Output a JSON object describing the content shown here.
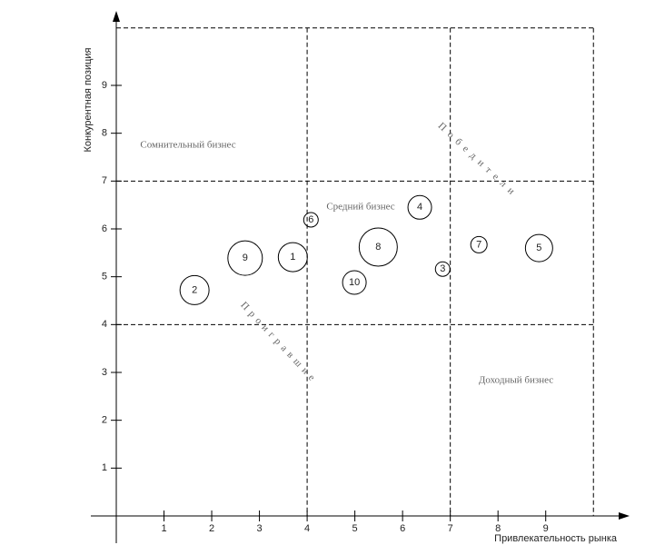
{
  "chart_data": {
    "type": "bubble",
    "x_label": "Привлекательность рынка",
    "y_label": "Конкурентная позиция",
    "xlim": [
      0,
      10.7
    ],
    "ylim": [
      0,
      10.5
    ],
    "xticks": [
      1,
      2,
      3,
      4,
      5,
      6,
      7,
      8,
      9
    ],
    "yticks": [
      1,
      2,
      3,
      4,
      5,
      6,
      7,
      8,
      9
    ],
    "x_dividers": [
      4,
      7,
      10
    ],
    "y_dividers": [
      4,
      7,
      10.2
    ],
    "annotations": [
      "Сомнительный бизнес",
      "Средний бизнес",
      "Доходный бизнес",
      "Победители",
      "Проигравшие"
    ],
    "points": [
      {
        "label": "9",
        "x": 2.7,
        "y": 5.39,
        "size": 19
      },
      {
        "label": "1",
        "x": 3.7,
        "y": 5.41,
        "size": 16
      },
      {
        "label": "2",
        "x": 1.64,
        "y": 4.72,
        "size": 16
      },
      {
        "label": "6",
        "x": 4.08,
        "y": 6.19,
        "size": 8
      },
      {
        "label": "8",
        "x": 5.49,
        "y": 5.62,
        "size": 21
      },
      {
        "label": "10",
        "x": 4.99,
        "y": 4.88,
        "size": 13
      },
      {
        "label": "4",
        "x": 6.36,
        "y": 6.45,
        "size": 13
      },
      {
        "label": "3",
        "x": 6.84,
        "y": 5.16,
        "size": 8
      },
      {
        "label": "7",
        "x": 7.6,
        "y": 5.67,
        "size": 9
      },
      {
        "label": "5",
        "x": 8.86,
        "y": 5.6,
        "size": 15
      }
    ]
  }
}
